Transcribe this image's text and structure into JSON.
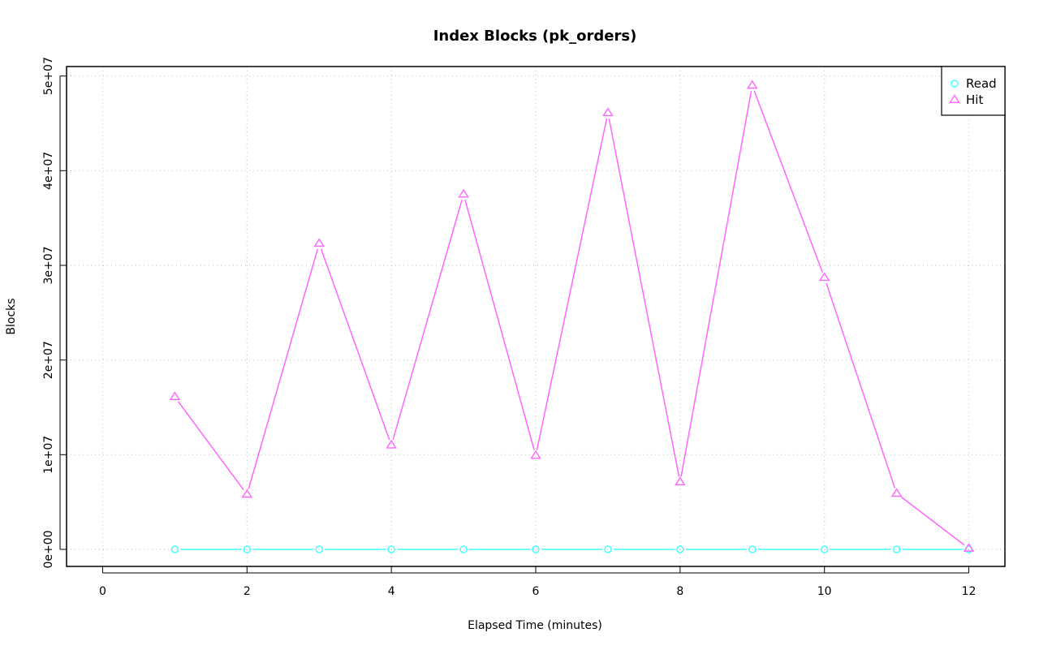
{
  "chart_data": {
    "type": "line",
    "title": "Index Blocks (pk_orders)",
    "xlabel": "Elapsed Time (minutes)",
    "ylabel": "Blocks",
    "xlim": [
      -0.5,
      12.5
    ],
    "ylim": [
      -1800000,
      51000000
    ],
    "xticks": [
      0,
      2,
      4,
      6,
      8,
      10,
      12
    ],
    "xtick_labels": [
      "0",
      "2",
      "4",
      "6",
      "8",
      "10",
      "12"
    ],
    "yticks": [
      0,
      10000000,
      20000000,
      30000000,
      40000000,
      50000000
    ],
    "ytick_labels": [
      "0e+00",
      "1e+07",
      "2e+07",
      "3e+07",
      "4e+07",
      "5e+07"
    ],
    "grid": true,
    "legend_position": "top-right",
    "x": [
      1,
      2,
      3,
      4,
      5,
      6,
      7,
      8,
      9,
      10,
      11,
      12
    ],
    "series": [
      {
        "name": "Read",
        "color": "#40FFFF",
        "marker": "circle",
        "values": [
          0,
          0,
          0,
          0,
          0,
          0,
          0,
          0,
          0,
          0,
          0,
          0
        ]
      },
      {
        "name": "Hit",
        "color": "#FF66FF",
        "marker": "triangle",
        "values": [
          16100000,
          5800000,
          32300000,
          11000000,
          37500000,
          9900000,
          46100000,
          7100000,
          49000000,
          28700000,
          5900000,
          100000
        ]
      }
    ]
  }
}
